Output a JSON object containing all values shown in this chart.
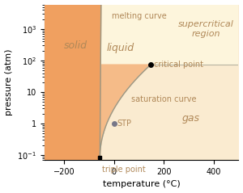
{
  "xlabel": "temperature (°C)",
  "ylabel": "pressure (atm)",
  "xlim": [
    -280,
    500
  ],
  "ymin": 0.07,
  "ymax": 6000,
  "color_solid": "#f0a060",
  "color_liquid": "#f5bb88",
  "color_gas": "#faebd0",
  "color_supercritical": "#fdf5dc",
  "curve_color": "#999988",
  "label_color": "#b08858",
  "triple_point_T": -56.6,
  "triple_point_P": 0.083,
  "critical_point_T": 147,
  "critical_point_P": 73.8,
  "stp_T": 0,
  "stp_P": 1,
  "melting_curve_label": "melting curve",
  "saturation_curve_label": "saturation curve",
  "solid_label": "solid",
  "liquid_label": "liquid",
  "gas_label": "gas",
  "supercritical_label": "supercritical\nregion",
  "critical_point_label": "critical point",
  "triple_point_label": "triple point",
  "stp_label": "STP"
}
